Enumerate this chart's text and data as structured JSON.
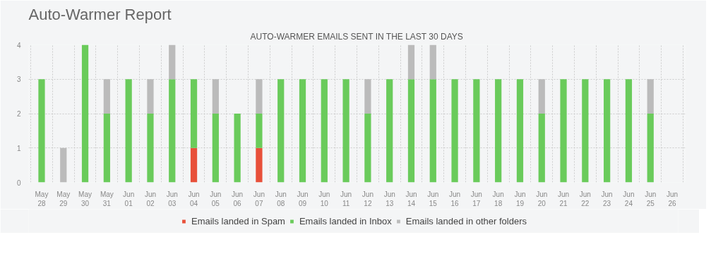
{
  "chart_data": {
    "type": "bar",
    "title": "Auto-Warmer Report",
    "subtitle": "AUTO-WARMER EMAILS SENT IN THE LAST 30 DAYS",
    "stacked": true,
    "categories": [
      "May 28",
      "May 29",
      "May 30",
      "May 31",
      "Jun 01",
      "Jun 02",
      "Jun 03",
      "Jun 04",
      "Jun 05",
      "Jun 06",
      "Jun 07",
      "Jun 08",
      "Jun 09",
      "Jun 10",
      "Jun 11",
      "Jun 12",
      "Jun 13",
      "Jun 14",
      "Jun 15",
      "Jun 16",
      "Jun 17",
      "Jun 18",
      "Jun 19",
      "Jun 20",
      "Jun 21",
      "Jun 22",
      "Jun 23",
      "Jun 24",
      "Jun 25",
      "Jun 26"
    ],
    "series": [
      {
        "name": "Emails landed in Spam",
        "color": "#e8503a",
        "values": [
          0,
          0,
          0,
          0,
          0,
          0,
          0,
          1,
          0,
          0,
          1,
          0,
          0,
          0,
          0,
          0,
          0,
          0,
          0,
          0,
          0,
          0,
          0,
          0,
          0,
          0,
          0,
          0,
          0,
          0
        ]
      },
      {
        "name": "Emails landed in Inbox",
        "color": "#6acb5b",
        "values": [
          3,
          0,
          4,
          2,
          3,
          2,
          3,
          2,
          2,
          2,
          1,
          3,
          3,
          3,
          3,
          2,
          3,
          3,
          3,
          3,
          3,
          3,
          3,
          2,
          3,
          3,
          3,
          3,
          2,
          0
        ]
      },
      {
        "name": "Emails landed in other folders",
        "color": "#bbbbbb",
        "values": [
          0,
          1,
          0,
          1,
          0,
          1,
          1,
          0,
          1,
          0,
          1,
          0,
          0,
          0,
          0,
          1,
          0,
          1,
          1,
          0,
          0,
          0,
          0,
          1,
          0,
          0,
          0,
          0,
          1,
          0
        ]
      }
    ],
    "ylim": [
      0,
      4
    ],
    "yticks": [
      0,
      1,
      2,
      3,
      4
    ],
    "grid": true,
    "legend": "bottom"
  }
}
